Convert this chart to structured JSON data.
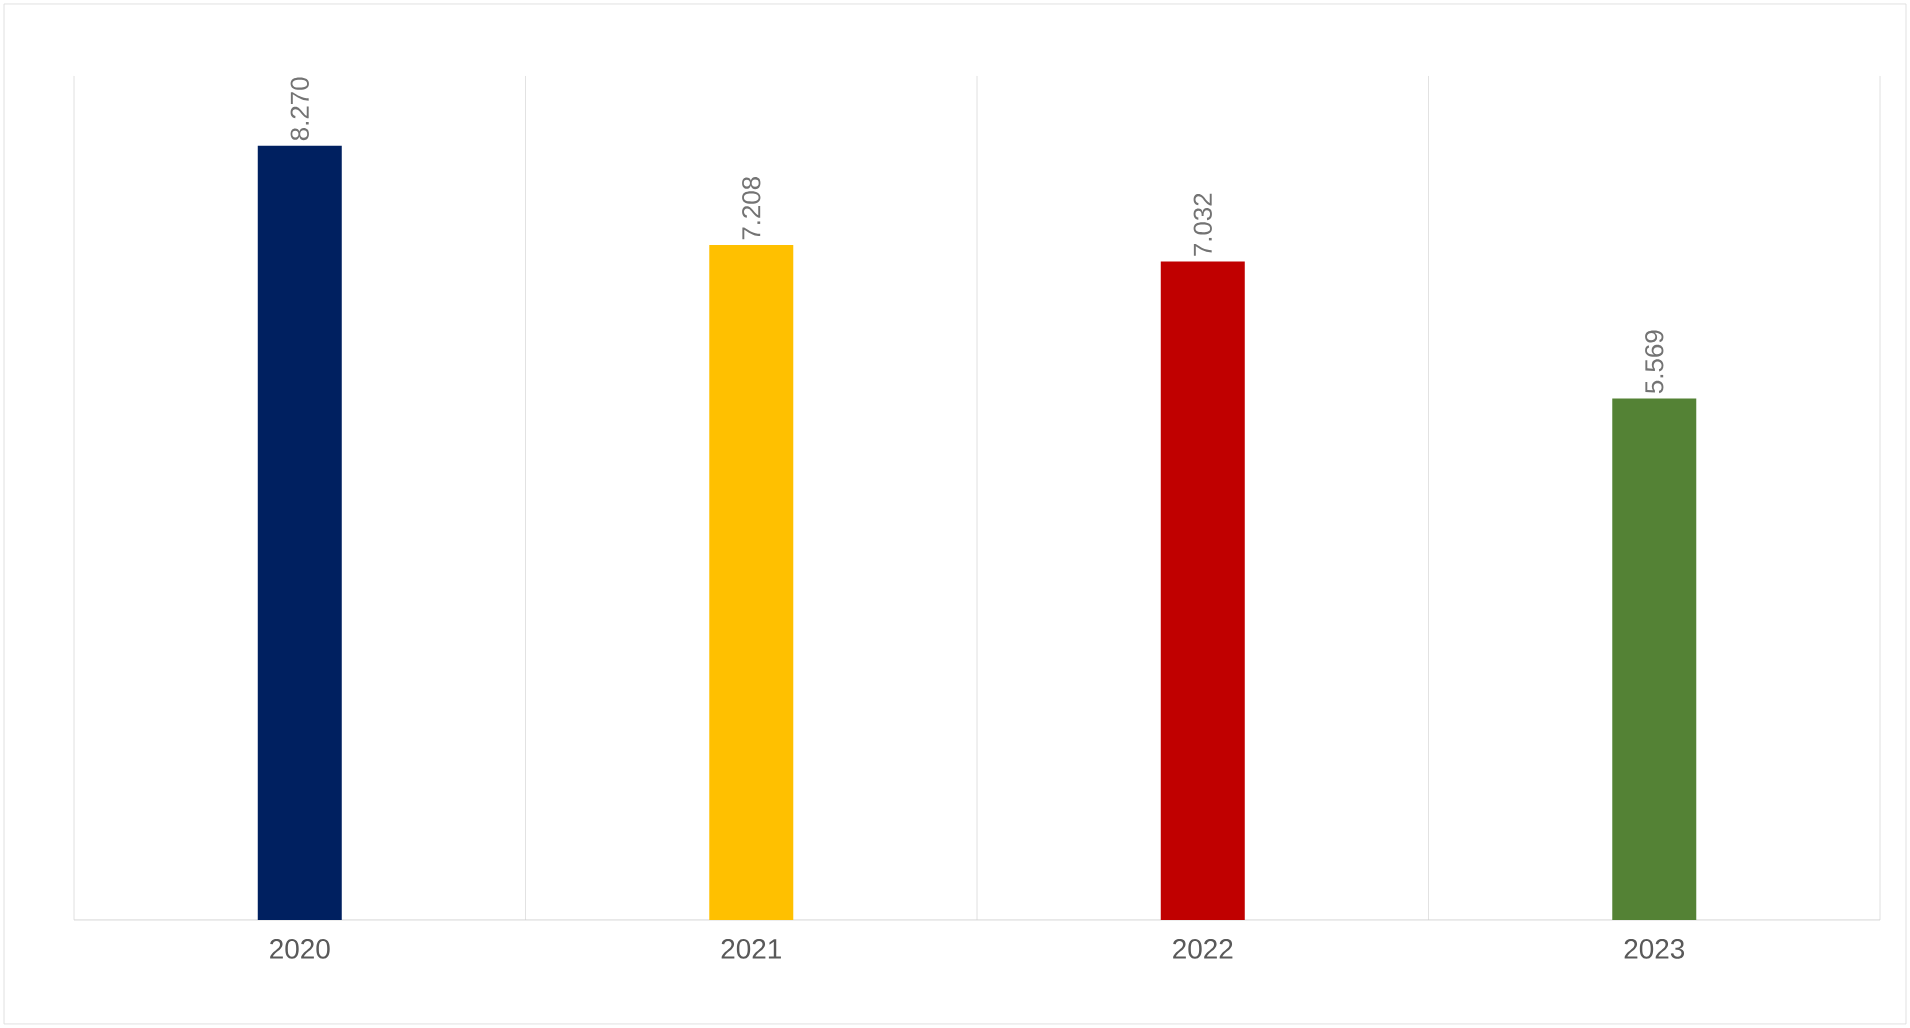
{
  "chart_data": {
    "type": "bar",
    "categories": [
      "2020",
      "2021",
      "2022",
      "2023"
    ],
    "values": [
      8270,
      7208,
      7032,
      5569
    ],
    "colors": [
      "#002060",
      "#ffc000",
      "#c00000",
      "#548235"
    ],
    "value_labels": [
      "8.270",
      "7.208",
      "7.032",
      "5.569"
    ],
    "grid": "x"
  }
}
